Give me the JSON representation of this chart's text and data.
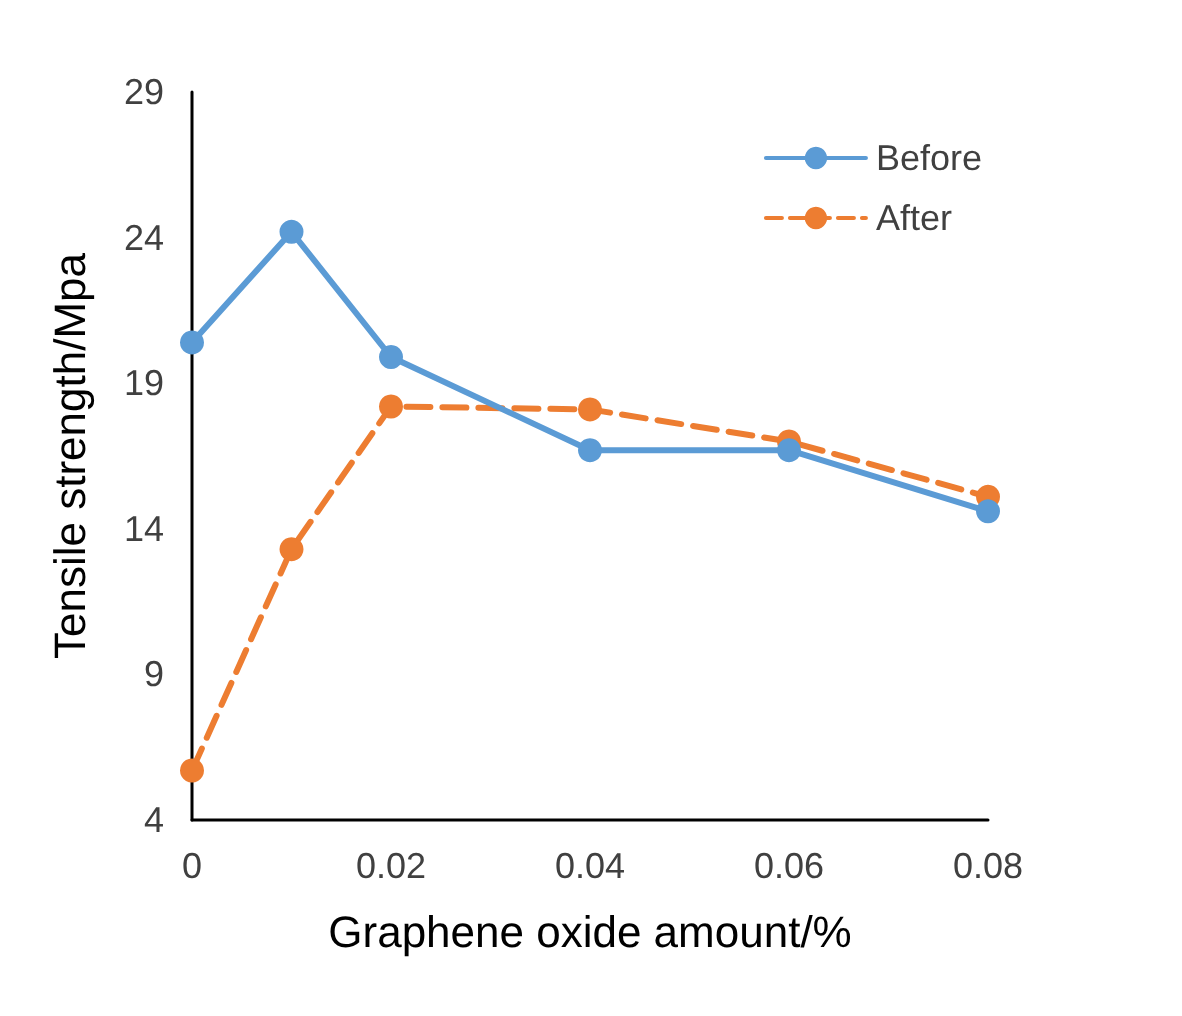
{
  "chart_data": {
    "type": "line",
    "xlabel": "Graphene oxide amount/%",
    "ylabel": "Tensile strength/Mpa",
    "x": [
      0,
      0.01,
      0.02,
      0.04,
      0.06,
      0.08
    ],
    "series": [
      {
        "name": "Before",
        "color": "#5b9bd5",
        "values": [
          20.4,
          24.2,
          19.9,
          16.7,
          16.7,
          14.6
        ],
        "line_style": "solid"
      },
      {
        "name": "After",
        "color": "#ed7d31",
        "values": [
          5.7,
          13.3,
          18.2,
          18.1,
          17.0,
          15.1
        ],
        "line_style": "dashed"
      }
    ],
    "xlim": [
      0,
      0.08
    ],
    "xticks": [
      0,
      0.02,
      0.04,
      0.06,
      0.08
    ],
    "ylim": [
      4,
      29
    ],
    "yticks": [
      4,
      9,
      14,
      19,
      24,
      29
    ],
    "grid": false,
    "legend": "top right",
    "marker": "circle"
  }
}
